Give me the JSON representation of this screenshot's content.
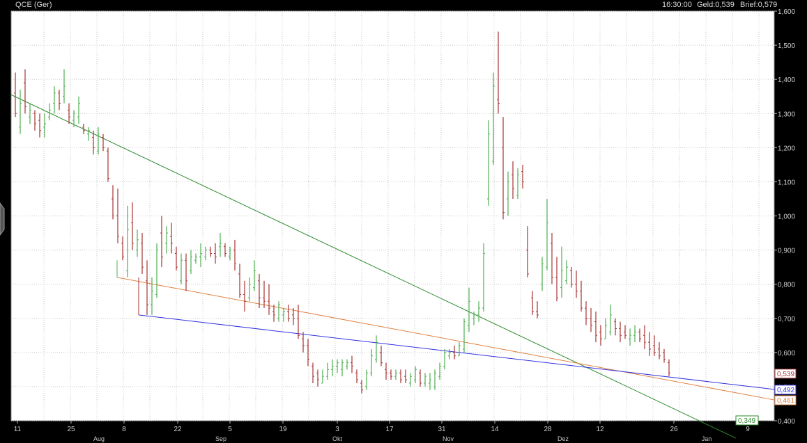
{
  "header": {
    "symbol": "QCE (Ger)",
    "time": "16:30:00",
    "geld": "Geld:0,539",
    "brief": "Brief:0,579"
  },
  "colors": {
    "up": "#4caf50",
    "down": "#a83232",
    "trend_green": "#2e8b2e",
    "trend_orange": "#e08040",
    "trend_blue": "#3030e0",
    "grid": "#c8c8c8",
    "plot_bg": "#ffffff",
    "page_bg": "#000000"
  },
  "chart_data": {
    "type": "bar",
    "style": "ohlc",
    "y_range": [
      0.4,
      1.6
    ],
    "y_ticks": [
      "0,400",
      "0,500",
      "0,600",
      "0,700",
      "0,800",
      "0,900",
      "1,000",
      "1,100",
      "1,200",
      "1,300",
      "1,400",
      "1,500",
      "1,600"
    ],
    "x_ticks": [
      "11",
      "25",
      "8",
      "22",
      "5",
      "19",
      "3",
      "17",
      "31",
      "14",
      "28",
      "12",
      "26",
      "9"
    ],
    "months": [
      "Aug",
      "Sep",
      "Okt",
      "Nov",
      "Dez",
      "Jan"
    ],
    "price_boxes": [
      {
        "label": "0,539",
        "value": 0.539,
        "color": "#a83232"
      },
      {
        "label": "0,492",
        "value": 0.492,
        "color": "#3030e0"
      },
      {
        "label": "0,461",
        "value": 0.461,
        "color": "#e08040"
      },
      {
        "label": "0,349",
        "value": 0.349,
        "color": "#2e8b2e"
      }
    ],
    "trendlines": [
      {
        "color": "green",
        "from": [
          0,
          1.355
        ],
        "to": [
          146,
          0.349
        ]
      },
      {
        "color": "orange",
        "from": [
          40,
          0.82
        ],
        "to": [
          154,
          0.461
        ]
      },
      {
        "color": "blue",
        "from": [
          41,
          0.71
        ],
        "to": [
          154,
          0.492
        ]
      }
    ],
    "bars": [
      [
        0,
        1.42,
        1.29,
        1.36,
        1.3
      ],
      [
        1,
        1.37,
        1.24,
        1.26,
        1.33
      ],
      [
        2,
        1.43,
        1.3,
        1.39,
        1.32
      ],
      [
        3,
        1.33,
        1.27,
        1.29,
        1.31
      ],
      [
        4,
        1.31,
        1.25,
        1.3,
        1.27
      ],
      [
        5,
        1.3,
        1.23,
        1.28,
        1.25
      ],
      [
        6,
        1.3,
        1.23,
        1.26,
        1.27
      ],
      [
        7,
        1.33,
        1.28,
        1.29,
        1.31
      ],
      [
        8,
        1.38,
        1.3,
        1.33,
        1.36
      ],
      [
        9,
        1.37,
        1.31,
        1.36,
        1.33
      ],
      [
        10,
        1.43,
        1.33,
        1.35,
        1.38
      ],
      [
        11,
        1.33,
        1.27,
        1.31,
        1.29
      ],
      [
        12,
        1.31,
        1.26,
        1.28,
        1.3
      ],
      [
        13,
        1.35,
        1.27,
        1.29,
        1.33
      ],
      [
        14,
        1.27,
        1.24,
        1.26,
        1.25
      ],
      [
        15,
        1.26,
        1.22,
        1.24,
        1.25
      ],
      [
        16,
        1.25,
        1.18,
        1.23,
        1.2
      ],
      [
        17,
        1.26,
        1.18,
        1.19,
        1.24
      ],
      [
        18,
        1.24,
        1.19,
        1.23,
        1.2
      ],
      [
        19,
        1.2,
        1.1,
        1.19,
        1.11
      ],
      [
        20,
        1.09,
        0.99,
        1.05,
        1.0
      ],
      [
        21,
        1.08,
        0.92,
        1.0,
        0.94
      ],
      [
        22,
        0.94,
        0.87,
        0.92,
        0.88
      ],
      [
        23,
        1.03,
        0.82,
        0.84,
        0.96
      ],
      [
        24,
        1.04,
        0.9,
        0.98,
        0.92
      ],
      [
        25,
        0.96,
        0.88,
        0.9,
        0.93
      ],
      [
        26,
        0.95,
        0.83,
        0.92,
        0.85
      ],
      [
        27,
        0.87,
        0.71,
        0.81,
        0.74
      ],
      [
        28,
        0.82,
        0.71,
        0.74,
        0.78
      ],
      [
        29,
        0.92,
        0.76,
        0.77,
        0.9
      ],
      [
        30,
        1.0,
        0.85,
        0.95,
        0.88
      ],
      [
        31,
        0.97,
        0.89,
        0.92,
        0.95
      ],
      [
        32,
        0.98,
        0.89,
        0.94,
        0.92
      ],
      [
        33,
        0.91,
        0.84,
        0.89,
        0.85
      ],
      [
        34,
        0.89,
        0.8,
        0.81,
        0.87
      ],
      [
        35,
        0.89,
        0.78,
        0.87,
        0.81
      ],
      [
        36,
        0.9,
        0.83,
        0.84,
        0.88
      ],
      [
        37,
        0.89,
        0.86,
        0.87,
        0.88
      ],
      [
        38,
        0.92,
        0.85,
        0.88,
        0.89
      ],
      [
        39,
        0.91,
        0.87,
        0.88,
        0.9
      ],
      [
        40,
        0.91,
        0.88,
        0.9,
        0.89
      ],
      [
        41,
        0.92,
        0.86,
        0.89,
        0.88
      ],
      [
        42,
        0.95,
        0.88,
        0.91,
        0.92
      ],
      [
        43,
        0.92,
        0.88,
        0.91,
        0.89
      ],
      [
        44,
        0.91,
        0.87,
        0.88,
        0.9
      ],
      [
        45,
        0.93,
        0.84,
        0.9,
        0.86
      ],
      [
        46,
        0.86,
        0.76,
        0.83,
        0.77
      ],
      [
        47,
        0.81,
        0.72,
        0.77,
        0.75
      ],
      [
        48,
        0.82,
        0.75,
        0.76,
        0.8
      ],
      [
        49,
        0.87,
        0.78,
        0.79,
        0.84
      ],
      [
        50,
        0.83,
        0.73,
        0.81,
        0.76
      ],
      [
        51,
        0.81,
        0.73,
        0.76,
        0.75
      ],
      [
        52,
        0.8,
        0.71,
        0.75,
        0.73
      ],
      [
        53,
        0.74,
        0.69,
        0.72,
        0.71
      ],
      [
        54,
        0.75,
        0.69,
        0.7,
        0.74
      ],
      [
        55,
        0.73,
        0.69,
        0.71,
        0.72
      ],
      [
        56,
        0.74,
        0.69,
        0.72,
        0.7
      ],
      [
        57,
        0.73,
        0.68,
        0.71,
        0.7
      ],
      [
        58,
        0.74,
        0.64,
        0.7,
        0.65
      ],
      [
        59,
        0.66,
        0.6,
        0.64,
        0.62
      ],
      [
        60,
        0.64,
        0.56,
        0.62,
        0.58
      ],
      [
        61,
        0.57,
        0.51,
        0.56,
        0.53
      ],
      [
        62,
        0.55,
        0.5,
        0.54,
        0.52
      ],
      [
        63,
        0.55,
        0.51,
        0.51,
        0.53
      ],
      [
        64,
        0.57,
        0.52,
        0.53,
        0.55
      ],
      [
        65,
        0.58,
        0.53,
        0.55,
        0.56
      ],
      [
        66,
        0.58,
        0.54,
        0.56,
        0.57
      ],
      [
        67,
        0.58,
        0.53,
        0.55,
        0.57
      ],
      [
        68,
        0.58,
        0.55,
        0.56,
        0.57
      ],
      [
        69,
        0.59,
        0.54,
        0.57,
        0.56
      ],
      [
        70,
        0.55,
        0.51,
        0.54,
        0.52
      ],
      [
        71,
        0.52,
        0.48,
        0.51,
        0.49
      ],
      [
        72,
        0.55,
        0.49,
        0.5,
        0.54
      ],
      [
        73,
        0.61,
        0.53,
        0.54,
        0.59
      ],
      [
        74,
        0.65,
        0.57,
        0.58,
        0.63
      ],
      [
        75,
        0.62,
        0.56,
        0.6,
        0.57
      ],
      [
        76,
        0.57,
        0.52,
        0.55,
        0.54
      ],
      [
        77,
        0.55,
        0.52,
        0.54,
        0.53
      ],
      [
        78,
        0.55,
        0.52,
        0.53,
        0.54
      ],
      [
        79,
        0.55,
        0.51,
        0.54,
        0.52
      ],
      [
        80,
        0.55,
        0.51,
        0.53,
        0.52
      ],
      [
        81,
        0.54,
        0.5,
        0.51,
        0.53
      ],
      [
        82,
        0.56,
        0.51,
        0.52,
        0.55
      ],
      [
        83,
        0.55,
        0.5,
        0.54,
        0.51
      ],
      [
        84,
        0.54,
        0.5,
        0.51,
        0.53
      ],
      [
        85,
        0.54,
        0.49,
        0.51,
        0.52
      ],
      [
        86,
        0.55,
        0.49,
        0.5,
        0.54
      ],
      [
        87,
        0.57,
        0.52,
        0.53,
        0.56
      ],
      [
        88,
        0.61,
        0.55,
        0.56,
        0.6
      ],
      [
        89,
        0.61,
        0.58,
        0.59,
        0.6
      ],
      [
        90,
        0.62,
        0.58,
        0.6,
        0.59
      ],
      [
        91,
        0.63,
        0.59,
        0.59,
        0.62
      ],
      [
        92,
        0.7,
        0.6,
        0.61,
        0.69
      ],
      [
        93,
        0.79,
        0.66,
        0.68,
        0.75
      ],
      [
        94,
        0.72,
        0.68,
        0.7,
        0.71
      ],
      [
        95,
        0.75,
        0.69,
        0.71,
        0.73
      ],
      [
        96,
        0.92,
        0.72,
        0.73,
        0.89
      ],
      [
        97,
        1.28,
        1.03,
        1.05,
        1.24
      ],
      [
        98,
        1.42,
        1.15,
        1.16,
        1.38
      ],
      [
        99,
        1.54,
        1.3,
        1.34,
        1.33
      ],
      [
        100,
        1.29,
        0.99,
        1.2,
        1.01
      ],
      [
        101,
        1.13,
        1.0,
        1.05,
        1.1
      ],
      [
        102,
        1.16,
        1.05,
        1.12,
        1.08
      ],
      [
        103,
        1.14,
        1.05,
        1.06,
        1.12
      ],
      [
        104,
        1.15,
        1.08,
        1.13,
        1.1
      ],
      [
        105,
        0.97,
        0.82,
        0.9,
        0.83
      ],
      [
        106,
        0.78,
        0.71,
        0.76,
        0.72
      ],
      [
        107,
        0.75,
        0.7,
        0.72,
        0.71
      ],
      [
        108,
        0.88,
        0.78,
        0.8,
        0.86
      ],
      [
        109,
        1.05,
        0.84,
        0.85,
        0.98
      ],
      [
        110,
        0.95,
        0.8,
        0.92,
        0.82
      ],
      [
        111,
        0.88,
        0.75,
        0.82,
        0.76
      ],
      [
        112,
        0.91,
        0.76,
        0.79,
        0.84
      ],
      [
        113,
        0.87,
        0.8,
        0.81,
        0.85
      ],
      [
        114,
        0.85,
        0.79,
        0.84,
        0.8
      ],
      [
        115,
        0.84,
        0.76,
        0.8,
        0.78
      ],
      [
        116,
        0.81,
        0.72,
        0.78,
        0.73
      ],
      [
        117,
        0.75,
        0.68,
        0.73,
        0.7
      ],
      [
        118,
        0.73,
        0.66,
        0.7,
        0.68
      ],
      [
        119,
        0.72,
        0.63,
        0.69,
        0.65
      ],
      [
        120,
        0.68,
        0.62,
        0.66,
        0.64
      ],
      [
        121,
        0.7,
        0.64,
        0.64,
        0.68
      ],
      [
        122,
        0.74,
        0.65,
        0.66,
        0.71
      ],
      [
        123,
        0.7,
        0.65,
        0.69,
        0.67
      ],
      [
        124,
        0.69,
        0.63,
        0.67,
        0.65
      ],
      [
        125,
        0.68,
        0.64,
        0.66,
        0.65
      ],
      [
        126,
        0.67,
        0.62,
        0.64,
        0.65
      ],
      [
        127,
        0.68,
        0.63,
        0.65,
        0.66
      ],
      [
        128,
        0.67,
        0.63,
        0.66,
        0.64
      ],
      [
        129,
        0.68,
        0.61,
        0.65,
        0.63
      ],
      [
        130,
        0.66,
        0.59,
        0.63,
        0.61
      ],
      [
        131,
        0.65,
        0.59,
        0.62,
        0.6
      ],
      [
        132,
        0.63,
        0.58,
        0.61,
        0.59
      ],
      [
        133,
        0.61,
        0.57,
        0.6,
        0.58
      ],
      [
        134,
        0.58,
        0.53,
        0.57,
        0.54
      ]
    ]
  }
}
